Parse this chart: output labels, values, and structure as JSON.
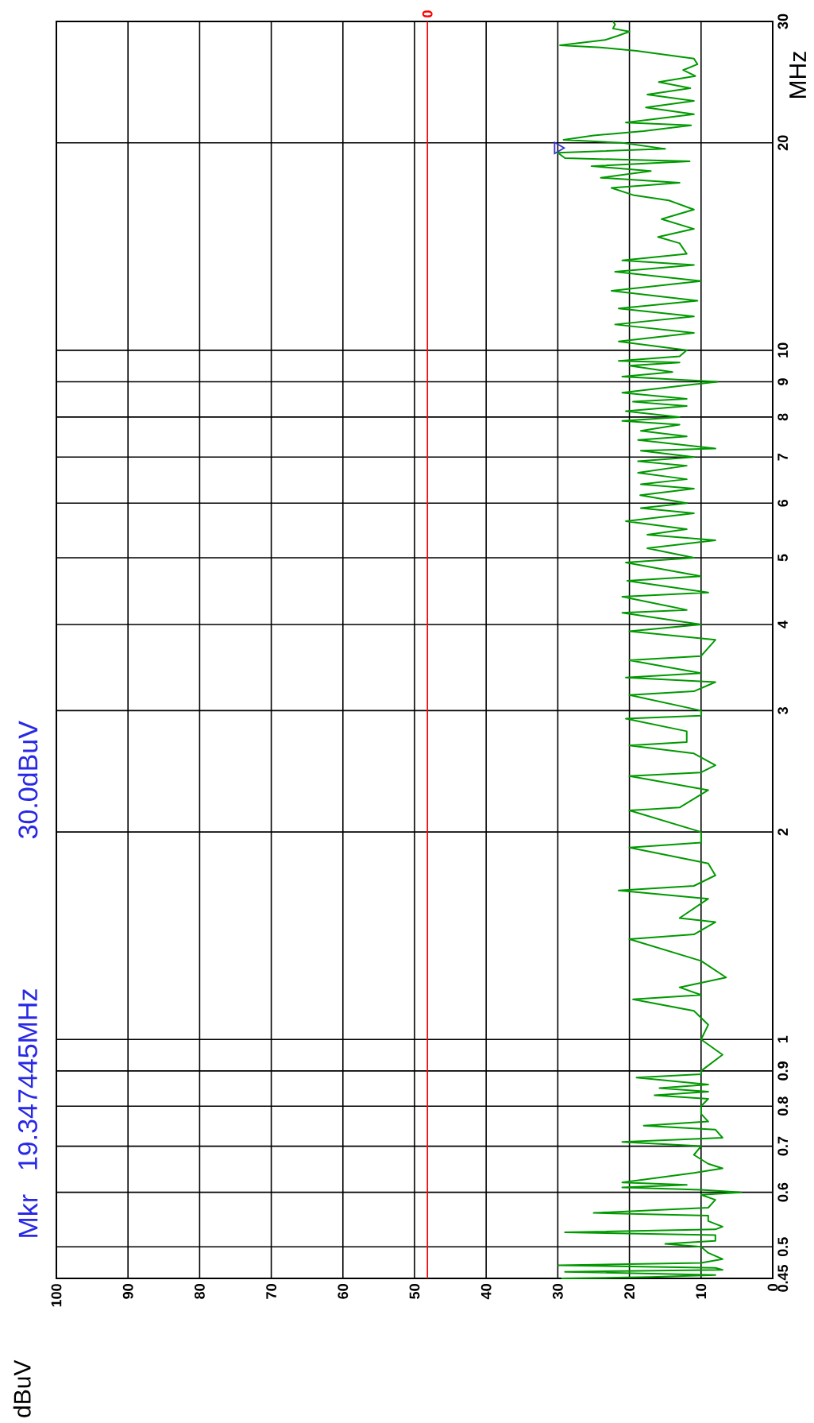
{
  "chart_data": {
    "type": "line",
    "ylabel": "MHz",
    "annotations": [
      "Mkr",
      "19.347445MHz",
      "30.0dBuV",
      {
        "text": "0",
        "x": 48.2,
        "y": 30
      },
      "dBuV"
    ],
    "log": "y",
    "grid": true,
    "xlim": [
      100,
      0
    ],
    "ylim": [
      0.45,
      30
    ],
    "xticks": [
      0,
      10,
      20,
      30,
      40,
      50,
      60,
      70,
      80,
      90,
      100
    ],
    "yticks": [
      0.45,
      0.5,
      0.6,
      0.7,
      0.8,
      0.9,
      1,
      2,
      3,
      4,
      5,
      6,
      7,
      8,
      9,
      10,
      20,
      30
    ],
    "ref_lines": [
      {
        "axis": "x",
        "value": 48.2,
        "color": "#ff0000"
      }
    ],
    "series": [
      {
        "color": "#009900",
        "values": [
          0.45,
          0.452,
          0.455,
          0.46,
          0.463,
          0.466,
          0.47,
          0.474,
          0.48,
          0.49,
          0.5,
          0.505,
          0.51,
          0.52,
          0.525,
          0.53,
          0.535,
          0.545,
          0.555,
          0.56,
          0.57,
          0.585,
          0.595,
          0.6,
          0.605,
          0.61,
          0.615,
          0.62,
          0.63,
          0.64,
          0.65,
          0.66,
          0.68,
          0.7,
          0.71,
          0.72,
          0.74,
          0.75,
          0.76,
          0.78,
          0.8,
          0.82,
          0.83,
          0.84,
          0.85,
          0.86,
          0.88,
          0.89,
          0.9,
          0.95,
          1.0,
          1.05,
          1.1,
          1.143,
          1.16,
          1.19,
          1.23,
          1.3,
          1.398,
          1.42,
          1.48,
          1.5,
          1.6,
          1.645,
          1.67,
          1.73,
          1.8,
          1.899,
          1.93,
          2.0,
          2.149,
          2.17,
          2.3,
          2.41,
          2.44,
          2.5,
          2.6,
          2.67,
          2.7,
          2.8,
          2.92,
          2.95,
          3.0,
          3.16,
          3.2,
          3.3,
          3.35,
          3.4,
          3.55,
          3.6,
          3.8,
          3.91,
          4.0,
          4.16,
          4.2,
          4.39,
          4.45,
          4.63,
          4.7,
          4.92,
          5.0,
          5.16,
          5.3,
          5.4,
          5.5,
          5.65,
          5.8,
          5.9,
          6.0,
          6.16,
          6.3,
          6.39,
          6.5,
          6.64,
          6.8,
          6.9,
          7.0,
          7.15,
          7.2,
          7.41,
          7.5,
          7.64,
          7.8,
          7.9,
          8.0,
          8.16,
          8.3,
          8.42,
          8.5,
          8.68,
          8.9,
          9.0,
          9.16,
          9.3,
          9.5,
          9.6,
          9.65,
          9.8,
          10.0,
          10.3,
          10.6,
          10.9,
          11.2,
          11.5,
          11.8,
          12.2,
          12.6,
          13.0,
          13.3,
          13.5,
          13.8,
          14.3,
          14.6,
          15.0,
          15.5,
          16.0,
          16.5,
          16.8,
          17.2,
          17.5,
          17.8,
          18.2,
          18.5,
          18.8,
          19.0,
          19.347445,
          19.6,
          20.0,
          20.2,
          20.5,
          20.8,
          21.2,
          21.4,
          22.0,
          22.5,
          23.0,
          23.5,
          24.0,
          24.5,
          25.0,
          25.5,
          26.0,
          26.5,
          27.2,
          27.5,
          27.7,
          28.2,
          28.6,
          29.0,
          29.3,
          29.7,
          30.0
        ],
        "x": [
          29.5,
          17,
          8,
          29,
          7,
          8,
          29.9,
          10,
          7,
          9,
          10,
          15,
          8,
          8,
          29,
          8,
          7,
          9,
          9,
          25,
          9,
          8,
          10,
          4.4,
          10,
          21,
          12,
          21,
          16,
          11,
          7,
          9,
          11,
          10,
          21,
          7,
          8,
          18,
          9,
          10,
          10,
          9,
          16.5,
          9,
          15.8,
          9,
          19,
          10,
          10,
          7,
          10,
          9,
          11,
          19.5,
          10,
          13,
          6.5,
          10,
          20,
          11,
          8,
          13,
          9,
          21.5,
          11,
          8,
          9,
          20,
          10,
          10,
          20,
          13,
          9,
          20,
          10,
          8,
          11,
          20,
          12,
          12,
          20.5,
          10,
          10,
          20,
          11,
          8,
          20.5,
          10,
          20,
          10,
          8,
          20,
          10,
          21,
          12,
          21,
          9,
          20.3,
          10,
          20.5,
          11,
          17.5,
          8,
          17.5,
          12,
          20.5,
          11,
          18.4,
          12,
          18.5,
          11,
          18.4,
          12,
          18.8,
          12,
          18.8,
          11,
          18.4,
          8,
          18.8,
          12,
          18.4,
          13,
          21,
          13,
          20.5,
          12,
          19.5,
          12,
          21,
          12,
          7.7,
          21,
          14,
          20,
          13,
          21.5,
          13,
          12,
          21.5,
          11,
          22,
          11,
          21.5,
          10.5,
          22.5,
          10,
          22,
          11,
          21,
          12,
          13,
          16,
          11,
          15.5,
          11,
          14.5,
          19.5,
          22.5,
          13,
          24,
          17,
          25.3,
          11.6,
          29,
          30,
          15,
          21,
          29.2,
          25,
          18,
          11.4,
          20.5,
          11,
          17.7,
          11,
          17.5,
          11.5,
          15.9,
          10.8,
          12.5,
          10.5,
          11,
          19,
          24,
          29.7,
          23.4,
          21.6,
          20,
          22.3,
          22,
          22.3
        ]
      },
      {
        "type": "scatter",
        "color": "#3333cc",
        "marker": "triangle",
        "x": [
          30
        ],
        "values": [
          19.347445
        ]
      }
    ]
  }
}
